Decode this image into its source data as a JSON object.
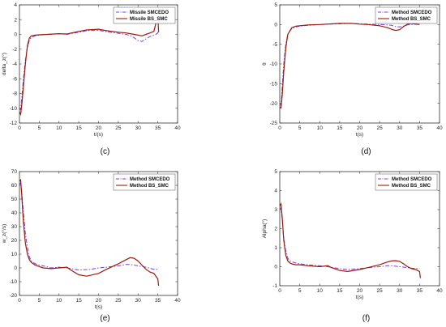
{
  "chart_data": [
    {
      "type": "line",
      "caption": "(c)",
      "xlabel": "t/(s)",
      "ylabel": "delta_z(°)",
      "xlim": [
        0,
        40
      ],
      "ylim": [
        -12,
        4
      ],
      "xticks": [
        0,
        5,
        10,
        15,
        20,
        25,
        30,
        35,
        40
      ],
      "yticks": [
        -12,
        -10,
        -8,
        -6,
        -4,
        -2,
        0,
        2,
        4
      ],
      "grid": false,
      "legend_position": "top-right",
      "series": [
        {
          "name": "Missile SMCEDO",
          "color": "#7a3fd8",
          "dash": "dashdot",
          "x": [
            0,
            0.3,
            0.6,
            1,
            1.5,
            2,
            2.5,
            3,
            4,
            5,
            7,
            10,
            12,
            15,
            17,
            20,
            22,
            25,
            27,
            28,
            29,
            30,
            31,
            32,
            33,
            34,
            34.5,
            35,
            35.2
          ],
          "y": [
            -10,
            -10.2,
            -8.5,
            -6,
            -3.5,
            -1.8,
            -0.8,
            -0.4,
            -0.2,
            -0.1,
            0,
            0.1,
            0,
            0.3,
            0.5,
            0.55,
            0.35,
            0.15,
            0,
            -0.15,
            -0.45,
            -0.85,
            -0.95,
            -0.6,
            -0.3,
            -0.1,
            0,
            0.2,
            0.6
          ]
        },
        {
          "name": "Missile BS_SMC",
          "color": "#9b1b0c",
          "dash": "solid",
          "x": [
            0,
            0.3,
            0.6,
            1,
            1.5,
            2,
            2.5,
            3,
            4,
            5,
            7,
            10,
            12,
            15,
            17,
            20,
            22,
            25,
            27,
            28,
            29,
            30,
            31,
            32,
            33,
            34,
            34.5,
            35,
            35.2
          ],
          "y": [
            -10.5,
            -10.8,
            -9.5,
            -7,
            -4,
            -1.5,
            -0.5,
            -0.2,
            -0.1,
            -0.05,
            0,
            0.1,
            0.05,
            0.4,
            0.6,
            0.7,
            0.5,
            0.3,
            0.2,
            0.1,
            0,
            -0.1,
            -0.2,
            0,
            0.2,
            0.4,
            1.5,
            2.7,
            0.3
          ]
        }
      ]
    },
    {
      "type": "line",
      "caption": "(d)",
      "xlabel": "t(s)",
      "ylabel": "θ",
      "xlim": [
        0,
        40
      ],
      "ylim": [
        -25,
        5
      ],
      "xticks": [
        0,
        5,
        10,
        15,
        20,
        25,
        30,
        35,
        40
      ],
      "yticks": [
        -25,
        -20,
        -15,
        -10,
        -5,
        0,
        5
      ],
      "grid": false,
      "legend_position": "top-right",
      "series": [
        {
          "name": "Method SMCEDO",
          "color": "#7a3fd8",
          "dash": "dashdot",
          "x": [
            0,
            0.3,
            0.6,
            1,
            1.5,
            2,
            3,
            4,
            5,
            7,
            10,
            15,
            18,
            20,
            22,
            25,
            27,
            28,
            29,
            30,
            31,
            32,
            33,
            34,
            35
          ],
          "y": [
            -20,
            -20.5,
            -16,
            -10,
            -5,
            -2.5,
            -1,
            -0.6,
            -0.4,
            -0.2,
            0,
            0.2,
            0.3,
            0.2,
            0.1,
            0,
            -0.1,
            -0.2,
            -0.5,
            -0.6,
            -0.4,
            -0.1,
            0,
            0.1,
            0
          ]
        },
        {
          "name": "Method BS_SMC",
          "color": "#9b1b0c",
          "dash": "solid",
          "x": [
            0,
            0.3,
            0.6,
            1,
            1.5,
            2,
            3,
            4,
            5,
            7,
            10,
            15,
            18,
            20,
            22,
            25,
            27,
            28,
            29,
            30,
            31,
            32,
            33,
            34,
            35
          ],
          "y": [
            -21,
            -21.2,
            -18,
            -12,
            -6,
            -2.5,
            -0.8,
            -0.4,
            -0.3,
            -0.1,
            0,
            0.3,
            0.3,
            0.1,
            0,
            -0.3,
            -0.8,
            -1.2,
            -1.5,
            -1.3,
            -0.5,
            0.1,
            0.3,
            0.1,
            0
          ]
        }
      ]
    },
    {
      "type": "line",
      "caption": "(e)",
      "xlabel": "t(s)",
      "ylabel": "w_z(°/s)",
      "xlim": [
        0,
        40
      ],
      "ylim": [
        -20,
        70
      ],
      "xticks": [
        0,
        5,
        10,
        15,
        20,
        25,
        30,
        35,
        40
      ],
      "yticks": [
        -20,
        -10,
        0,
        10,
        20,
        30,
        40,
        50,
        60,
        70
      ],
      "grid": false,
      "legend_position": "top-right",
      "series": [
        {
          "name": "Method SMCEDO",
          "color": "#7a3fd8",
          "dash": "dashdot",
          "x": [
            0,
            0.3,
            0.6,
            1,
            1.5,
            2,
            2.5,
            3,
            4,
            5,
            6,
            8,
            10,
            12,
            15,
            18,
            20,
            22,
            25,
            27,
            28,
            30,
            32,
            34,
            35
          ],
          "y": [
            60,
            62,
            55,
            40,
            25,
            15,
            8,
            5,
            3,
            2,
            1.5,
            0,
            0.5,
            0,
            -1.5,
            -1,
            0,
            0.5,
            1.5,
            2.5,
            2.5,
            1.5,
            0.5,
            -1,
            -1
          ]
        },
        {
          "name": "Method BS_SMC",
          "color": "#9b1b0c",
          "dash": "solid",
          "x": [
            0,
            0.3,
            0.6,
            1,
            1.5,
            2,
            2.5,
            3,
            4,
            5,
            6,
            8,
            10,
            12,
            13,
            15,
            17,
            20,
            22,
            25,
            27,
            28,
            29,
            30,
            31,
            32,
            33,
            34,
            35,
            35.2
          ],
          "y": [
            63,
            64,
            52,
            33,
            18,
            10,
            6,
            4,
            2,
            1,
            0,
            -0.5,
            0,
            0.5,
            -1.5,
            -5,
            -6,
            -4,
            -1,
            3,
            6,
            7.5,
            7,
            5,
            2,
            -1,
            -3,
            -4,
            -8,
            -13
          ]
        }
      ]
    },
    {
      "type": "line",
      "caption": "(f)",
      "xlabel": "t(s)",
      "ylabel": "Alpha(°)",
      "xlim": [
        0,
        40
      ],
      "ylim": [
        -1,
        5
      ],
      "xticks": [
        0,
        5,
        10,
        15,
        20,
        25,
        30,
        35,
        40
      ],
      "yticks": [
        -1,
        0,
        1,
        2,
        3,
        4,
        5
      ],
      "grid": false,
      "legend_position": "top-right",
      "series": [
        {
          "name": "Method SMCEDO",
          "color": "#7a3fd8",
          "dash": "dashdot",
          "x": [
            0,
            0.3,
            0.6,
            1,
            1.5,
            2,
            2.5,
            3,
            4,
            5,
            7,
            10,
            12,
            15,
            17,
            20,
            22,
            25,
            27,
            28,
            30,
            32,
            34,
            35
          ],
          "y": [
            3,
            3.1,
            2.5,
            1.5,
            0.8,
            0.45,
            0.3,
            0.25,
            0.2,
            0.15,
            0.1,
            0.05,
            0,
            -0.1,
            -0.15,
            -0.1,
            -0.05,
            0,
            0.05,
            0.05,
            0,
            -0.05,
            -0.1,
            -0.1
          ]
        },
        {
          "name": "Method BS_SMC",
          "color": "#9b1b0c",
          "dash": "solid",
          "x": [
            0,
            0.3,
            0.6,
            1,
            1.5,
            2,
            2.5,
            3,
            4,
            5,
            7,
            10,
            12,
            13,
            15,
            17,
            20,
            22,
            25,
            27,
            28,
            29,
            30,
            31,
            32,
            33,
            34,
            35,
            35.2
          ],
          "y": [
            3.2,
            3.3,
            2.6,
            1.4,
            0.6,
            0.3,
            0.2,
            0.15,
            0.1,
            0.1,
            0.05,
            0,
            0.05,
            -0.05,
            -0.2,
            -0.25,
            -0.15,
            -0.05,
            0.1,
            0.25,
            0.3,
            0.32,
            0.28,
            0.15,
            0,
            -0.1,
            -0.15,
            -0.25,
            -0.6
          ]
        }
      ]
    }
  ]
}
